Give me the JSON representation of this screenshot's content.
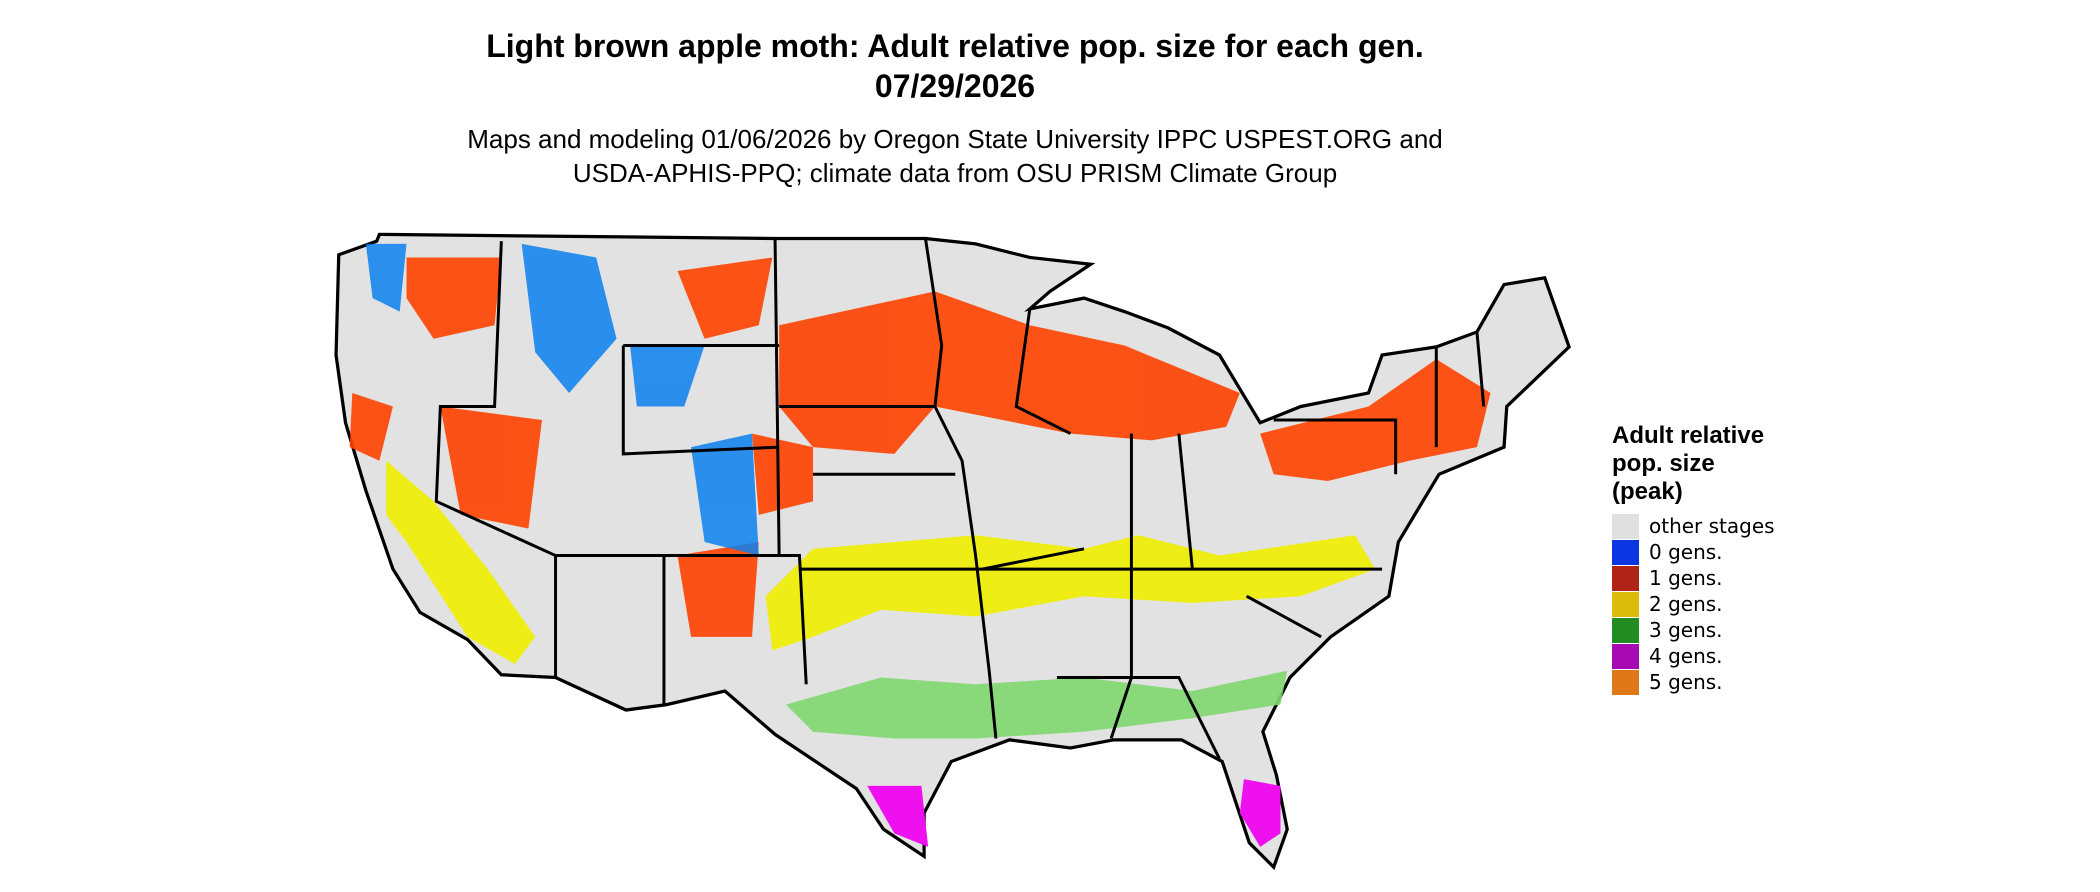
{
  "title": [
    "Light brown apple moth: Adult relative pop. size for each gen.",
    "07/29/2026"
  ],
  "subtitle": [
    "Maps and modeling 01/06/2026 by Oregon State University IPPC USPEST.ORG and",
    "USDA-APHIS-PPQ; climate data from OSU PRISM Climate Group"
  ],
  "legend": {
    "title": [
      "Adult relative",
      "pop. size",
      "(peak)"
    ],
    "items": [
      {
        "label": "other stages",
        "color": "#e0e0e0"
      },
      {
        "label": "0 gens.",
        "color": "#0a35e0"
      },
      {
        "label": "1 gens.",
        "color": "#b02418"
      },
      {
        "label": "2 gens.",
        "color": "#dcbc0a"
      },
      {
        "label": "3 gens.",
        "color": "#228b22"
      },
      {
        "label": "4 gens.",
        "color": "#a60ab0"
      },
      {
        "label": "5 gens.",
        "color": "#e07818"
      }
    ]
  }
}
